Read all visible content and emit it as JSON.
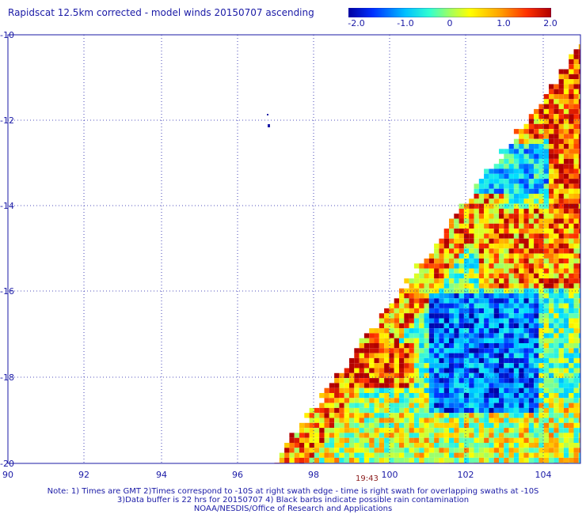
{
  "title": "Rapidscat 12.5km corrected - model winds 20150707 ascending",
  "colorbar": {
    "labels": [
      "-2.0",
      "-1.0",
      "0",
      "1.0",
      "2.0"
    ],
    "colors": [
      "#0000a0",
      "#0030ff",
      "#00c0ff",
      "#30ffd0",
      "#a0ff60",
      "#ffff00",
      "#ffa000",
      "#ff3000",
      "#b00000"
    ]
  },
  "axes": {
    "y_labels": [
      "-10",
      "-12",
      "-14",
      "-16",
      "-18",
      "-20"
    ],
    "x_labels": [
      "90",
      "92",
      "94",
      "96",
      "98",
      "100",
      "102",
      "104"
    ]
  },
  "time_label": "19:43",
  "notes": [
    "Note: 1) Times are GMT 2)Times correspond to -10S at right swath edge - time is right swath for overlapping swaths at -10S",
    "3)Data buffer is 22 hrs for 20150707 4) Black barbs indicate possible rain contamination",
    "NOAA/NESDIS/Office of Research and Applications"
  ]
}
